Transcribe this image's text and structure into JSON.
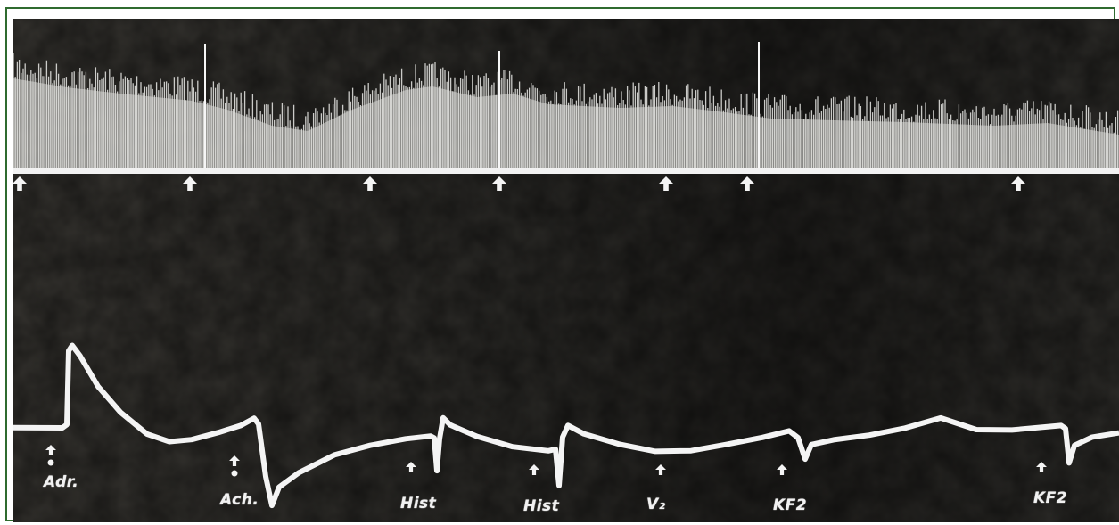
{
  "photo": {
    "kind": "kymograph-recording",
    "colors": {
      "background": "#2b2a27",
      "trace": "#f4f4f4",
      "frame": "#2f6b2f"
    }
  },
  "markers": [
    {
      "id": "adr",
      "label": "Adr.",
      "has_dot": true
    },
    {
      "id": "ach",
      "label": "Ach.",
      "has_dot": true
    },
    {
      "id": "hist1",
      "label": "Hist",
      "has_dot": false
    },
    {
      "id": "hist2",
      "label": "Hist",
      "has_dot": false
    },
    {
      "id": "v2",
      "label": "V₂",
      "has_dot": false
    },
    {
      "id": "kf2-1",
      "label": "KF2",
      "has_dot": false
    },
    {
      "id": "kf2-2",
      "label": "KF2",
      "has_dot": false
    }
  ],
  "upper_arrows_count": 7
}
